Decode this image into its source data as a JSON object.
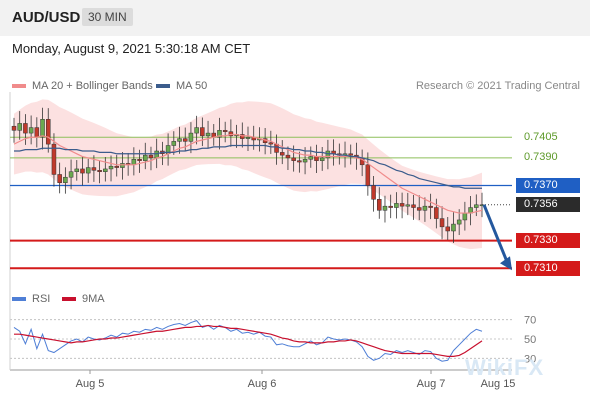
{
  "header": {
    "pair": "AUD/USD",
    "timeframe": "30 MIN"
  },
  "datetime": "Monday, August 9, 2021 5:30:18 AM CET",
  "legend": {
    "ma20": "MA 20 + Bollinger Bands",
    "ma50": "MA 50",
    "rsi": "RSI",
    "ma9": "9MA"
  },
  "credit": "Research © 2021 Trading Central",
  "watermark": "WikiFX",
  "colors": {
    "ma20": "#f08b8b",
    "ma50": "#3b5c8c",
    "rsi": "#4f7fd6",
    "ma9": "#c8102e",
    "support": "#d41a1a",
    "resistance": "#1f5fc4",
    "target": "#8dbf5a",
    "arrow": "#24589e"
  },
  "chart_data": [
    {
      "type": "line",
      "title": "",
      "y_axis": "price",
      "levels": [
        {
          "label": "0.7405",
          "value": 0.7405,
          "kind": "target"
        },
        {
          "label": "0.7390",
          "value": 0.739,
          "kind": "target"
        },
        {
          "label": "0.7370",
          "value": 0.737,
          "kind": "resistance"
        },
        {
          "label": "0.7356",
          "value": 0.7356,
          "kind": "last"
        },
        {
          "label": "0.7330",
          "value": 0.733,
          "kind": "support"
        },
        {
          "label": "0.7310",
          "value": 0.731,
          "kind": "support"
        }
      ],
      "x_ticks": [
        "Aug 5",
        "Aug 6",
        "Aug 7",
        "Aug 15"
      ],
      "ylim": [
        0.73,
        0.7432
      ],
      "close": [
        0.741,
        0.7415,
        0.7408,
        0.7412,
        0.7405,
        0.7418,
        0.74,
        0.7378,
        0.7372,
        0.7376,
        0.738,
        0.7382,
        0.7379,
        0.7383,
        0.7381,
        0.738,
        0.7382,
        0.7384,
        0.7383,
        0.7386,
        0.7385,
        0.7389,
        0.7388,
        0.7392,
        0.739,
        0.7395,
        0.7393,
        0.7399,
        0.7402,
        0.7404,
        0.7402,
        0.7408,
        0.7412,
        0.7406,
        0.7408,
        0.7405,
        0.741,
        0.7409,
        0.7406,
        0.7407,
        0.7404,
        0.7405,
        0.7403,
        0.7404,
        0.7401,
        0.74,
        0.7394,
        0.7392,
        0.739,
        0.7388,
        0.7387,
        0.7389,
        0.7391,
        0.7388,
        0.739,
        0.7395,
        0.7393,
        0.7392,
        0.7393,
        0.7392,
        0.739,
        0.7385,
        0.737,
        0.736,
        0.7352,
        0.7355,
        0.7354,
        0.7357,
        0.7355,
        0.7356,
        0.7354,
        0.7352,
        0.7355,
        0.7354,
        0.7346,
        0.734,
        0.7337,
        0.7342,
        0.7345,
        0.735,
        0.7354,
        0.7356,
        0.7356
      ],
      "ma20": [
        0.74,
        0.7402,
        0.7404,
        0.7405,
        0.7405,
        0.7406,
        0.7405,
        0.7402,
        0.7399,
        0.7397,
        0.7395,
        0.7393,
        0.7391,
        0.739,
        0.7389,
        0.7388,
        0.7387,
        0.7386,
        0.7385,
        0.7385,
        0.7385,
        0.7385,
        0.7386,
        0.7387,
        0.7388,
        0.739,
        0.7391,
        0.7393,
        0.7395,
        0.7397,
        0.7398,
        0.74,
        0.7402,
        0.7403,
        0.7404,
        0.7405,
        0.7406,
        0.7406,
        0.7407,
        0.7407,
        0.7406,
        0.7406,
        0.7405,
        0.7404,
        0.7403,
        0.7402,
        0.74,
        0.7398,
        0.7396,
        0.7394,
        0.7393,
        0.7392,
        0.7392,
        0.7391,
        0.7391,
        0.7391,
        0.7391,
        0.7391,
        0.7391,
        0.7391,
        0.739,
        0.7389,
        0.7386,
        0.7383,
        0.738,
        0.7377,
        0.7374,
        0.7371,
        0.7368,
        0.7366,
        0.7364,
        0.7362,
        0.736,
        0.7358,
        0.7356,
        0.7354,
        0.7352,
        0.7351,
        0.735,
        0.735,
        0.735,
        0.7351,
        0.7352
      ],
      "ma50": [
        0.7395,
        0.7395,
        0.7396,
        0.7396,
        0.7396,
        0.7397,
        0.7397,
        0.7397,
        0.7397,
        0.7396,
        0.7396,
        0.7396,
        0.7395,
        0.7395,
        0.7395,
        0.7394,
        0.7394,
        0.7394,
        0.7393,
        0.7393,
        0.7393,
        0.7393,
        0.7393,
        0.7393,
        0.7393,
        0.7393,
        0.7394,
        0.7394,
        0.7394,
        0.7395,
        0.7395,
        0.7396,
        0.7396,
        0.7397,
        0.7397,
        0.7398,
        0.7398,
        0.7398,
        0.7399,
        0.7399,
        0.7399,
        0.7399,
        0.7399,
        0.7399,
        0.7399,
        0.7398,
        0.7398,
        0.7397,
        0.7397,
        0.7396,
        0.7396,
        0.7395,
        0.7395,
        0.7394,
        0.7394,
        0.7393,
        0.7393,
        0.7392,
        0.7392,
        0.7391,
        0.7391,
        0.739,
        0.7389,
        0.7388,
        0.7386,
        0.7385,
        0.7383,
        0.7381,
        0.738,
        0.7378,
        0.7377,
        0.7375,
        0.7374,
        0.7373,
        0.7372,
        0.7371,
        0.737,
        0.7369,
        0.7369,
        0.7368,
        0.7368,
        0.7368,
        0.7368
      ]
    },
    {
      "type": "line",
      "title": "",
      "y_axis": "rsi",
      "ylim": [
        20,
        80
      ],
      "y_ticks": [
        70,
        50,
        30
      ],
      "x_ticks": [
        "Aug 5",
        "Aug 6",
        "Aug 7",
        "Aug 15"
      ],
      "rsi": [
        62,
        58,
        45,
        60,
        40,
        55,
        38,
        36,
        40,
        44,
        48,
        50,
        47,
        52,
        50,
        49,
        51,
        54,
        52,
        56,
        55,
        58,
        57,
        60,
        59,
        62,
        60,
        63,
        65,
        66,
        64,
        67,
        69,
        62,
        64,
        60,
        64,
        62,
        58,
        60,
        56,
        57,
        55,
        57,
        53,
        52,
        44,
        45,
        43,
        42,
        42,
        45,
        48,
        44,
        46,
        52,
        50,
        49,
        50,
        49,
        47,
        42,
        32,
        28,
        30,
        35,
        34,
        38,
        36,
        38,
        36,
        34,
        38,
        37,
        30,
        27,
        28,
        38,
        44,
        50,
        56,
        60,
        58
      ],
      "ma9": [
        55,
        55,
        54,
        53,
        52,
        51,
        50,
        49,
        48,
        47,
        46,
        47,
        47,
        48,
        49,
        50,
        50,
        51,
        51,
        52,
        53,
        54,
        55,
        56,
        57,
        58,
        58,
        59,
        60,
        61,
        62,
        62,
        63,
        63,
        64,
        63,
        63,
        62,
        61,
        61,
        60,
        59,
        58,
        57,
        56,
        55,
        53,
        51,
        50,
        48,
        47,
        47,
        46,
        46,
        46,
        47,
        47,
        48,
        48,
        49,
        48,
        46,
        44,
        42,
        40,
        38,
        37,
        36,
        35,
        35,
        35,
        35,
        35,
        35,
        34,
        33,
        32,
        32,
        33,
        36,
        40,
        44,
        48
      ]
    }
  ]
}
